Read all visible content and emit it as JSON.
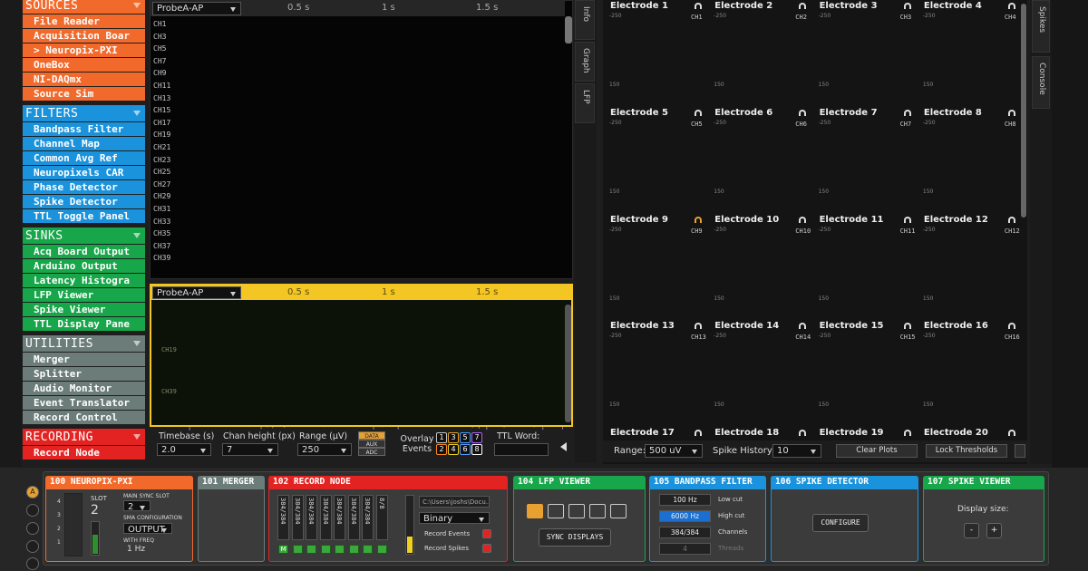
{
  "left_strip": "A",
  "sidebar": {
    "sections": [
      {
        "title": "SOURCES",
        "color": "#f26a2b",
        "items": [
          "File Reader",
          "Acquisition Boar",
          "> Neuropix-PXI",
          "OneBox",
          "NI-DAQmx",
          "Source Sim"
        ]
      },
      {
        "title": "FILTERS",
        "color": "#1a93dc",
        "items": [
          "Bandpass Filter",
          "Channel Map",
          "Common Avg Ref",
          "Neuropixels CAR",
          "Phase Detector",
          "Spike Detector",
          "TTL Toggle Panel"
        ]
      },
      {
        "title": "SINKS",
        "color": "#17a64a",
        "items": [
          "Acq Board Output",
          "Arduino Output",
          "Latency Histogra",
          "LFP Viewer",
          "Spike Viewer",
          "TTL Display Pane"
        ]
      },
      {
        "title": "UTILITIES",
        "color": "#6b7c79",
        "items": [
          "Merger",
          "Splitter",
          "Audio Monitor",
          "Event Translator",
          "Record Control"
        ]
      },
      {
        "title": "RECORDING",
        "color": "#e32322",
        "items": [
          "Record Node"
        ]
      }
    ]
  },
  "lfp": {
    "probe": "ProbeA-AP",
    "times": [
      "0.5 s",
      "1 s",
      "1.5 s"
    ],
    "channels": [
      "CH1",
      "CH3",
      "CH5",
      "CH7",
      "CH9",
      "CH11",
      "CH13",
      "CH15",
      "CH17",
      "CH19",
      "CH21",
      "CH23",
      "CH25",
      "CH27",
      "CH29",
      "CH31",
      "CH33",
      "CH35",
      "CH37",
      "CH39"
    ],
    "trace_colors": [
      "#f5e663",
      "#ffffff",
      "#ffffff",
      "#ff4a3a",
      "#ff4a3a",
      "#ff9a3a",
      "#ff6ad8",
      "#c87aff",
      "#8a7aff",
      "#66b3ff",
      "#4d8bff",
      "#6ae0ff",
      "#ffffff",
      "#7dff8a",
      "#a6ff5a",
      "#c0c0c0",
      "#9ab0ff",
      "#ffffff",
      "#ff7a3a",
      "#ffc04a"
    ],
    "raster_probe": "ProbeA-AP",
    "raster_channels": [
      "CH19",
      "CH39"
    ],
    "raster_color": "#9d8cf5"
  },
  "controls": {
    "timebase": {
      "label": "Timebase (s)",
      "value": "2.0"
    },
    "chan_height": {
      "label": "Chan height (px)",
      "value": "7"
    },
    "range": {
      "label": "Range (µV)",
      "value": "250"
    },
    "streams": [
      "DATA",
      "AUX",
      "ADC"
    ],
    "overlay": "Overlay Events",
    "event_buttons": [
      "1",
      "3",
      "5",
      "7",
      "2",
      "4",
      "6",
      "8"
    ],
    "event_colors": [
      "#c8c8c8",
      "#e8a020",
      "#4a9cff",
      "#b060ff",
      "#ff8a20",
      "#f0d020",
      "#5a9cff",
      "#ffffff"
    ],
    "ttl": "TTL Word:"
  },
  "middle_tabs": [
    "Info",
    "Graph",
    "LFP"
  ],
  "right_tabs": [
    "Spikes",
    "Console"
  ],
  "spike_viewer": {
    "electrodes": [
      {
        "name": "Electrode 1",
        "channel": "CH1"
      },
      {
        "name": "Electrode 2",
        "channel": "CH2"
      },
      {
        "name": "Electrode 3",
        "channel": "CH3"
      },
      {
        "name": "Electrode 4",
        "channel": "CH4"
      },
      {
        "name": "Electrode 5",
        "channel": "CH5"
      },
      {
        "name": "Electrode 6",
        "channel": "CH6"
      },
      {
        "name": "Electrode 7",
        "channel": "CH7"
      },
      {
        "name": "Electrode 8",
        "channel": "CH8"
      },
      {
        "name": "Electrode 9",
        "channel": "CH9"
      },
      {
        "name": "Electrode 10",
        "channel": "CH10"
      },
      {
        "name": "Electrode 11",
        "channel": "CH11"
      },
      {
        "name": "Electrode 12",
        "channel": "CH12"
      },
      {
        "name": "Electrode 13",
        "channel": "CH13"
      },
      {
        "name": "Electrode 14",
        "channel": "CH14"
      },
      {
        "name": "Electrode 15",
        "channel": "CH15"
      },
      {
        "name": "Electrode 16",
        "channel": "CH16"
      },
      {
        "name": "Electrode 17"
      },
      {
        "name": "Electrode 18"
      },
      {
        "name": "Electrode 19"
      },
      {
        "name": "Electrode 20"
      }
    ],
    "axis_top": "-250",
    "axis_bottom": "150",
    "range_label": "Range:",
    "range": "500 uV",
    "history_label": "Spike History:",
    "history": "10",
    "buttons": [
      "Clear Plots",
      "Lock Thresholds"
    ]
  },
  "processors": [
    {
      "title": "100 NEUROPIX-PXI",
      "color": "#f26a2b",
      "slots": [
        "4",
        "3",
        "2",
        "1"
      ],
      "slot_label": "SLOT",
      "slot": "2",
      "sync_label": "MAIN SYNC SLOT",
      "sync": "2",
      "sma_label": "SMA CONFIGURATION",
      "sma": "OUTPUT",
      "freq_label": "WITH FREQ",
      "freq": "1 Hz"
    },
    {
      "title": "101 MERGER",
      "color": "#6b7c79"
    },
    {
      "title": "102 RECORD NODE",
      "color": "#e32322",
      "counts": [
        "384/384",
        "384/384",
        "384/384",
        "384/384",
        "384/384",
        "384/384",
        "384/384",
        "8/8"
      ],
      "main": "M",
      "path": "C:\\Users\\joshs\\Docu...",
      "format": "Binary",
      "record_events": "Record Events",
      "record_spikes": "Record Spikes"
    },
    {
      "title": "104 LFP VIEWER",
      "color": "#17a64a",
      "button": "SYNC DISPLAYS"
    },
    {
      "title": "105 BANDPASS FILTER",
      "color": "#1a93dc",
      "rows": [
        [
          "100 Hz",
          "Low cut"
        ],
        [
          "6000 Hz",
          "High cut"
        ],
        [
          "384/384",
          "Channels"
        ],
        [
          "4",
          "Threads"
        ]
      ]
    },
    {
      "title": "106 SPIKE DETECTOR",
      "color": "#1a93dc",
      "button": "CONFIGURE"
    },
    {
      "title": "107 SPIKE VIEWER",
      "color": "#17a64a",
      "label": "Display size:",
      "buttons": [
        "-",
        "+"
      ]
    }
  ]
}
